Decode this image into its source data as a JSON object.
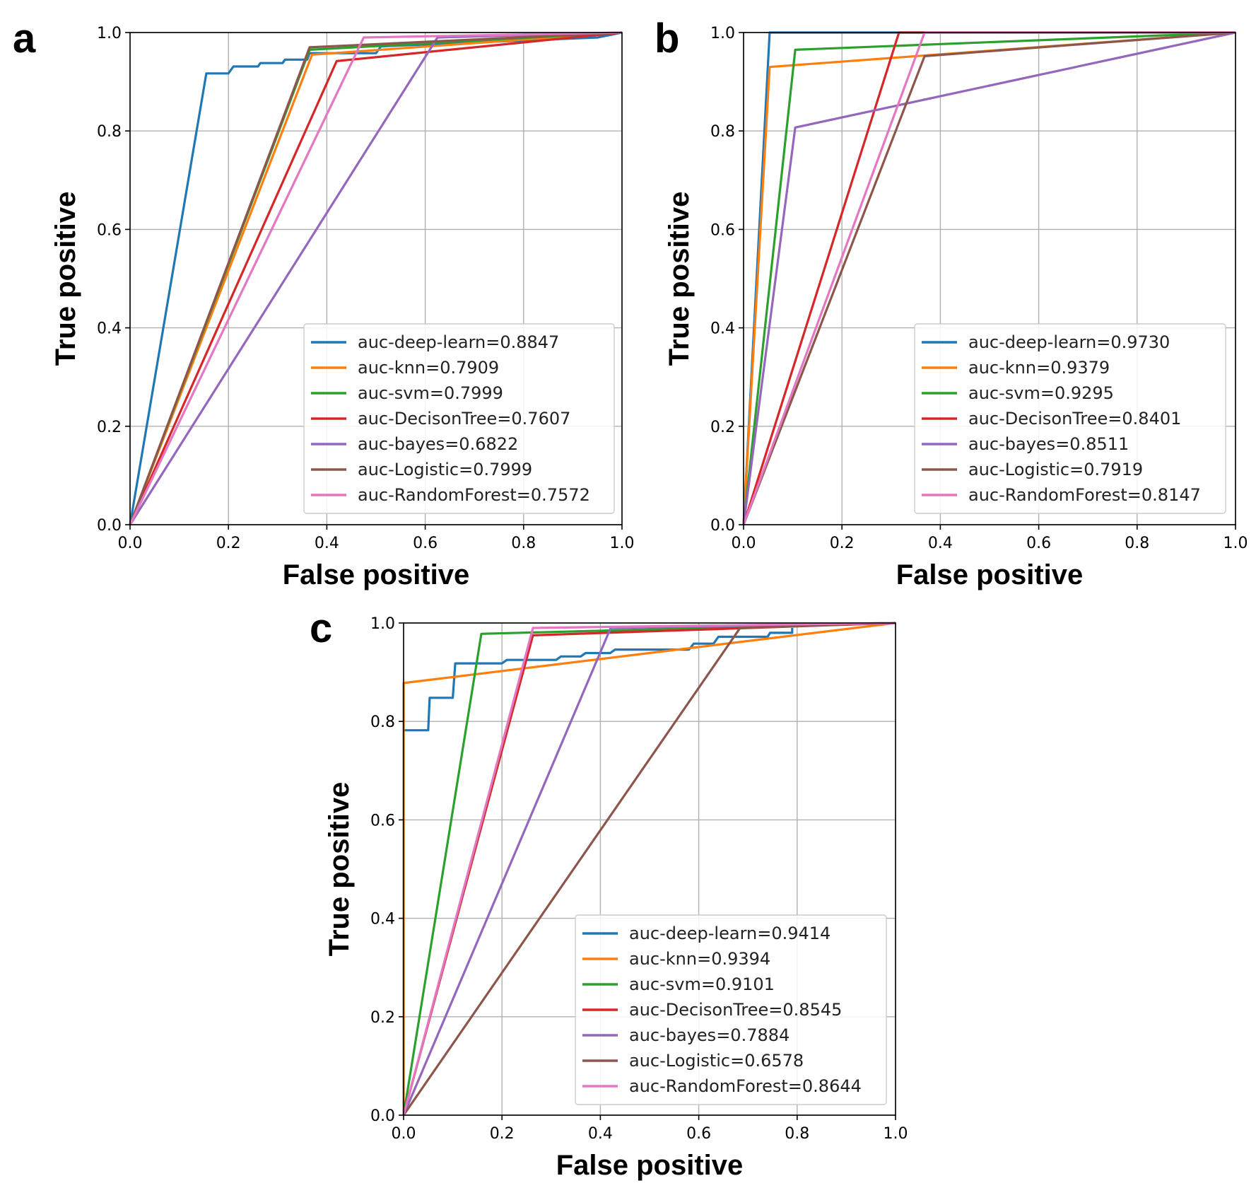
{
  "chart_data": [
    {
      "panel_label": "a",
      "type": "line",
      "xlabel": "False positive",
      "ylabel": "True positive",
      "xlim": [
        0.0,
        1.0
      ],
      "ylim": [
        0.0,
        1.0
      ],
      "xticks": [
        "0.0",
        "0.2",
        "0.4",
        "0.6",
        "0.8",
        "1.0"
      ],
      "yticks": [
        "0.0",
        "0.2",
        "0.4",
        "0.6",
        "0.8",
        "1.0"
      ],
      "grid": true,
      "legend_position": "lower-right",
      "series": [
        {
          "name": "auc-deep-learn=0.8847",
          "color": "#1f77b4",
          "points": [
            [
              0,
              0
            ],
            [
              0.155,
              0.917
            ],
            [
              0.2,
              0.917
            ],
            [
              0.21,
              0.931
            ],
            [
              0.26,
              0.931
            ],
            [
              0.265,
              0.938
            ],
            [
              0.31,
              0.938
            ],
            [
              0.315,
              0.945
            ],
            [
              0.36,
              0.945
            ],
            [
              0.365,
              0.958
            ],
            [
              0.5,
              0.958
            ],
            [
              0.51,
              0.972
            ],
            [
              0.95,
              0.99
            ],
            [
              1,
              1
            ]
          ]
        },
        {
          "name": "auc-knn=0.7909",
          "color": "#ff7f0e",
          "points": [
            [
              0,
              0
            ],
            [
              0.37,
              0.955
            ],
            [
              1,
              1
            ]
          ]
        },
        {
          "name": "auc-svm=0.7999",
          "color": "#2ca02c",
          "points": [
            [
              0,
              0
            ],
            [
              0.365,
              0.965
            ],
            [
              1,
              1
            ]
          ]
        },
        {
          "name": "auc-DecisonTree=0.7607",
          "color": "#d62728",
          "points": [
            [
              0,
              0
            ],
            [
              0.42,
              0.942
            ],
            [
              1,
              1
            ]
          ]
        },
        {
          "name": "auc-bayes=0.6822",
          "color": "#9467bd",
          "points": [
            [
              0,
              0
            ],
            [
              0.625,
              0.99
            ],
            [
              1,
              1
            ]
          ]
        },
        {
          "name": "auc-Logistic=0.7999",
          "color": "#8c564b",
          "points": [
            [
              0,
              0
            ],
            [
              0.365,
              0.97
            ],
            [
              1,
              1
            ]
          ]
        },
        {
          "name": "auc-RandomForest=0.7572",
          "color": "#e377c2",
          "points": [
            [
              0,
              0
            ],
            [
              0.475,
              0.99
            ],
            [
              1,
              1
            ]
          ]
        }
      ]
    },
    {
      "panel_label": "b",
      "type": "line",
      "xlabel": "False positive",
      "ylabel": "True positive",
      "xlim": [
        0.0,
        1.0
      ],
      "ylim": [
        0.0,
        1.0
      ],
      "xticks": [
        "0.0",
        "0.2",
        "0.4",
        "0.6",
        "0.8",
        "1.0"
      ],
      "yticks": [
        "0.0",
        "0.2",
        "0.4",
        "0.6",
        "0.8",
        "1.0"
      ],
      "grid": true,
      "legend_position": "lower-right",
      "series": [
        {
          "name": "auc-deep-learn=0.9730",
          "color": "#1f77b4",
          "points": [
            [
              0,
              0
            ],
            [
              0.053,
              1.0
            ],
            [
              1,
              1
            ]
          ]
        },
        {
          "name": "auc-knn=0.9379",
          "color": "#ff7f0e",
          "points": [
            [
              0,
              0
            ],
            [
              0.053,
              0.93
            ],
            [
              1,
              1
            ]
          ]
        },
        {
          "name": "auc-svm=0.9295",
          "color": "#2ca02c",
          "points": [
            [
              0,
              0
            ],
            [
              0.105,
              0.965
            ],
            [
              1,
              1
            ]
          ]
        },
        {
          "name": "auc-DecisonTree=0.8401",
          "color": "#d62728",
          "points": [
            [
              0,
              0
            ],
            [
              0.316,
              1.0
            ],
            [
              1,
              1
            ]
          ]
        },
        {
          "name": "auc-bayes=0.8511",
          "color": "#9467bd",
          "points": [
            [
              0,
              0
            ],
            [
              0.105,
              0.807
            ],
            [
              1,
              1
            ]
          ]
        },
        {
          "name": "auc-Logistic=0.7919",
          "color": "#8c564b",
          "points": [
            [
              0,
              0
            ],
            [
              0.368,
              0.952
            ],
            [
              1,
              1
            ]
          ]
        },
        {
          "name": "auc-RandomForest=0.8147",
          "color": "#e377c2",
          "points": [
            [
              0,
              0
            ],
            [
              0.368,
              1.0
            ],
            [
              1,
              1
            ]
          ]
        }
      ]
    },
    {
      "panel_label": "c",
      "type": "line",
      "xlabel": "False positive",
      "ylabel": "True positive",
      "xlim": [
        0.0,
        1.0
      ],
      "ylim": [
        0.0,
        1.0
      ],
      "xticks": [
        "0.0",
        "0.2",
        "0.4",
        "0.6",
        "0.8",
        "1.0"
      ],
      "yticks": [
        "0.0",
        "0.2",
        "0.4",
        "0.6",
        "0.8",
        "1.0"
      ],
      "grid": true,
      "legend_position": "lower-right",
      "series": [
        {
          "name": "auc-deep-learn=0.9414",
          "color": "#1f77b4",
          "points": [
            [
              0,
              0.782
            ],
            [
              0.05,
              0.782
            ],
            [
              0.053,
              0.848
            ],
            [
              0.1,
              0.848
            ],
            [
              0.105,
              0.918
            ],
            [
              0.2,
              0.918
            ],
            [
              0.21,
              0.925
            ],
            [
              0.31,
              0.925
            ],
            [
              0.32,
              0.932
            ],
            [
              0.36,
              0.932
            ],
            [
              0.37,
              0.939
            ],
            [
              0.42,
              0.939
            ],
            [
              0.43,
              0.946
            ],
            [
              0.58,
              0.946
            ],
            [
              0.59,
              0.958
            ],
            [
              0.63,
              0.958
            ],
            [
              0.64,
              0.972
            ],
            [
              0.74,
              0.972
            ],
            [
              0.745,
              0.98
            ],
            [
              0.79,
              0.98
            ],
            [
              0.79,
              0.99
            ]
          ]
        },
        {
          "name": "auc-knn=0.9394",
          "color": "#ff7f0e",
          "points": [
            [
              0,
              0
            ],
            [
              0,
              0.878
            ],
            [
              1,
              1
            ]
          ]
        },
        {
          "name": "auc-svm=0.9101",
          "color": "#2ca02c",
          "points": [
            [
              0,
              0
            ],
            [
              0.158,
              0.978
            ],
            [
              1,
              1
            ]
          ]
        },
        {
          "name": "auc-DecisonTree=0.8545",
          "color": "#d62728",
          "points": [
            [
              0,
              0
            ],
            [
              0.263,
              0.975
            ],
            [
              1,
              1
            ]
          ]
        },
        {
          "name": "auc-bayes=0.7884",
          "color": "#9467bd",
          "points": [
            [
              0,
              0
            ],
            [
              0.421,
              0.99
            ],
            [
              1,
              1
            ]
          ]
        },
        {
          "name": "auc-Logistic=0.6578",
          "color": "#8c564b",
          "points": [
            [
              0,
              0
            ],
            [
              0.684,
              0.99
            ],
            [
              1,
              1
            ]
          ]
        },
        {
          "name": "auc-RandomForest=0.8644",
          "color": "#e377c2",
          "points": [
            [
              0,
              0
            ],
            [
              0.263,
              0.99
            ],
            [
              1,
              1
            ]
          ]
        }
      ]
    }
  ]
}
